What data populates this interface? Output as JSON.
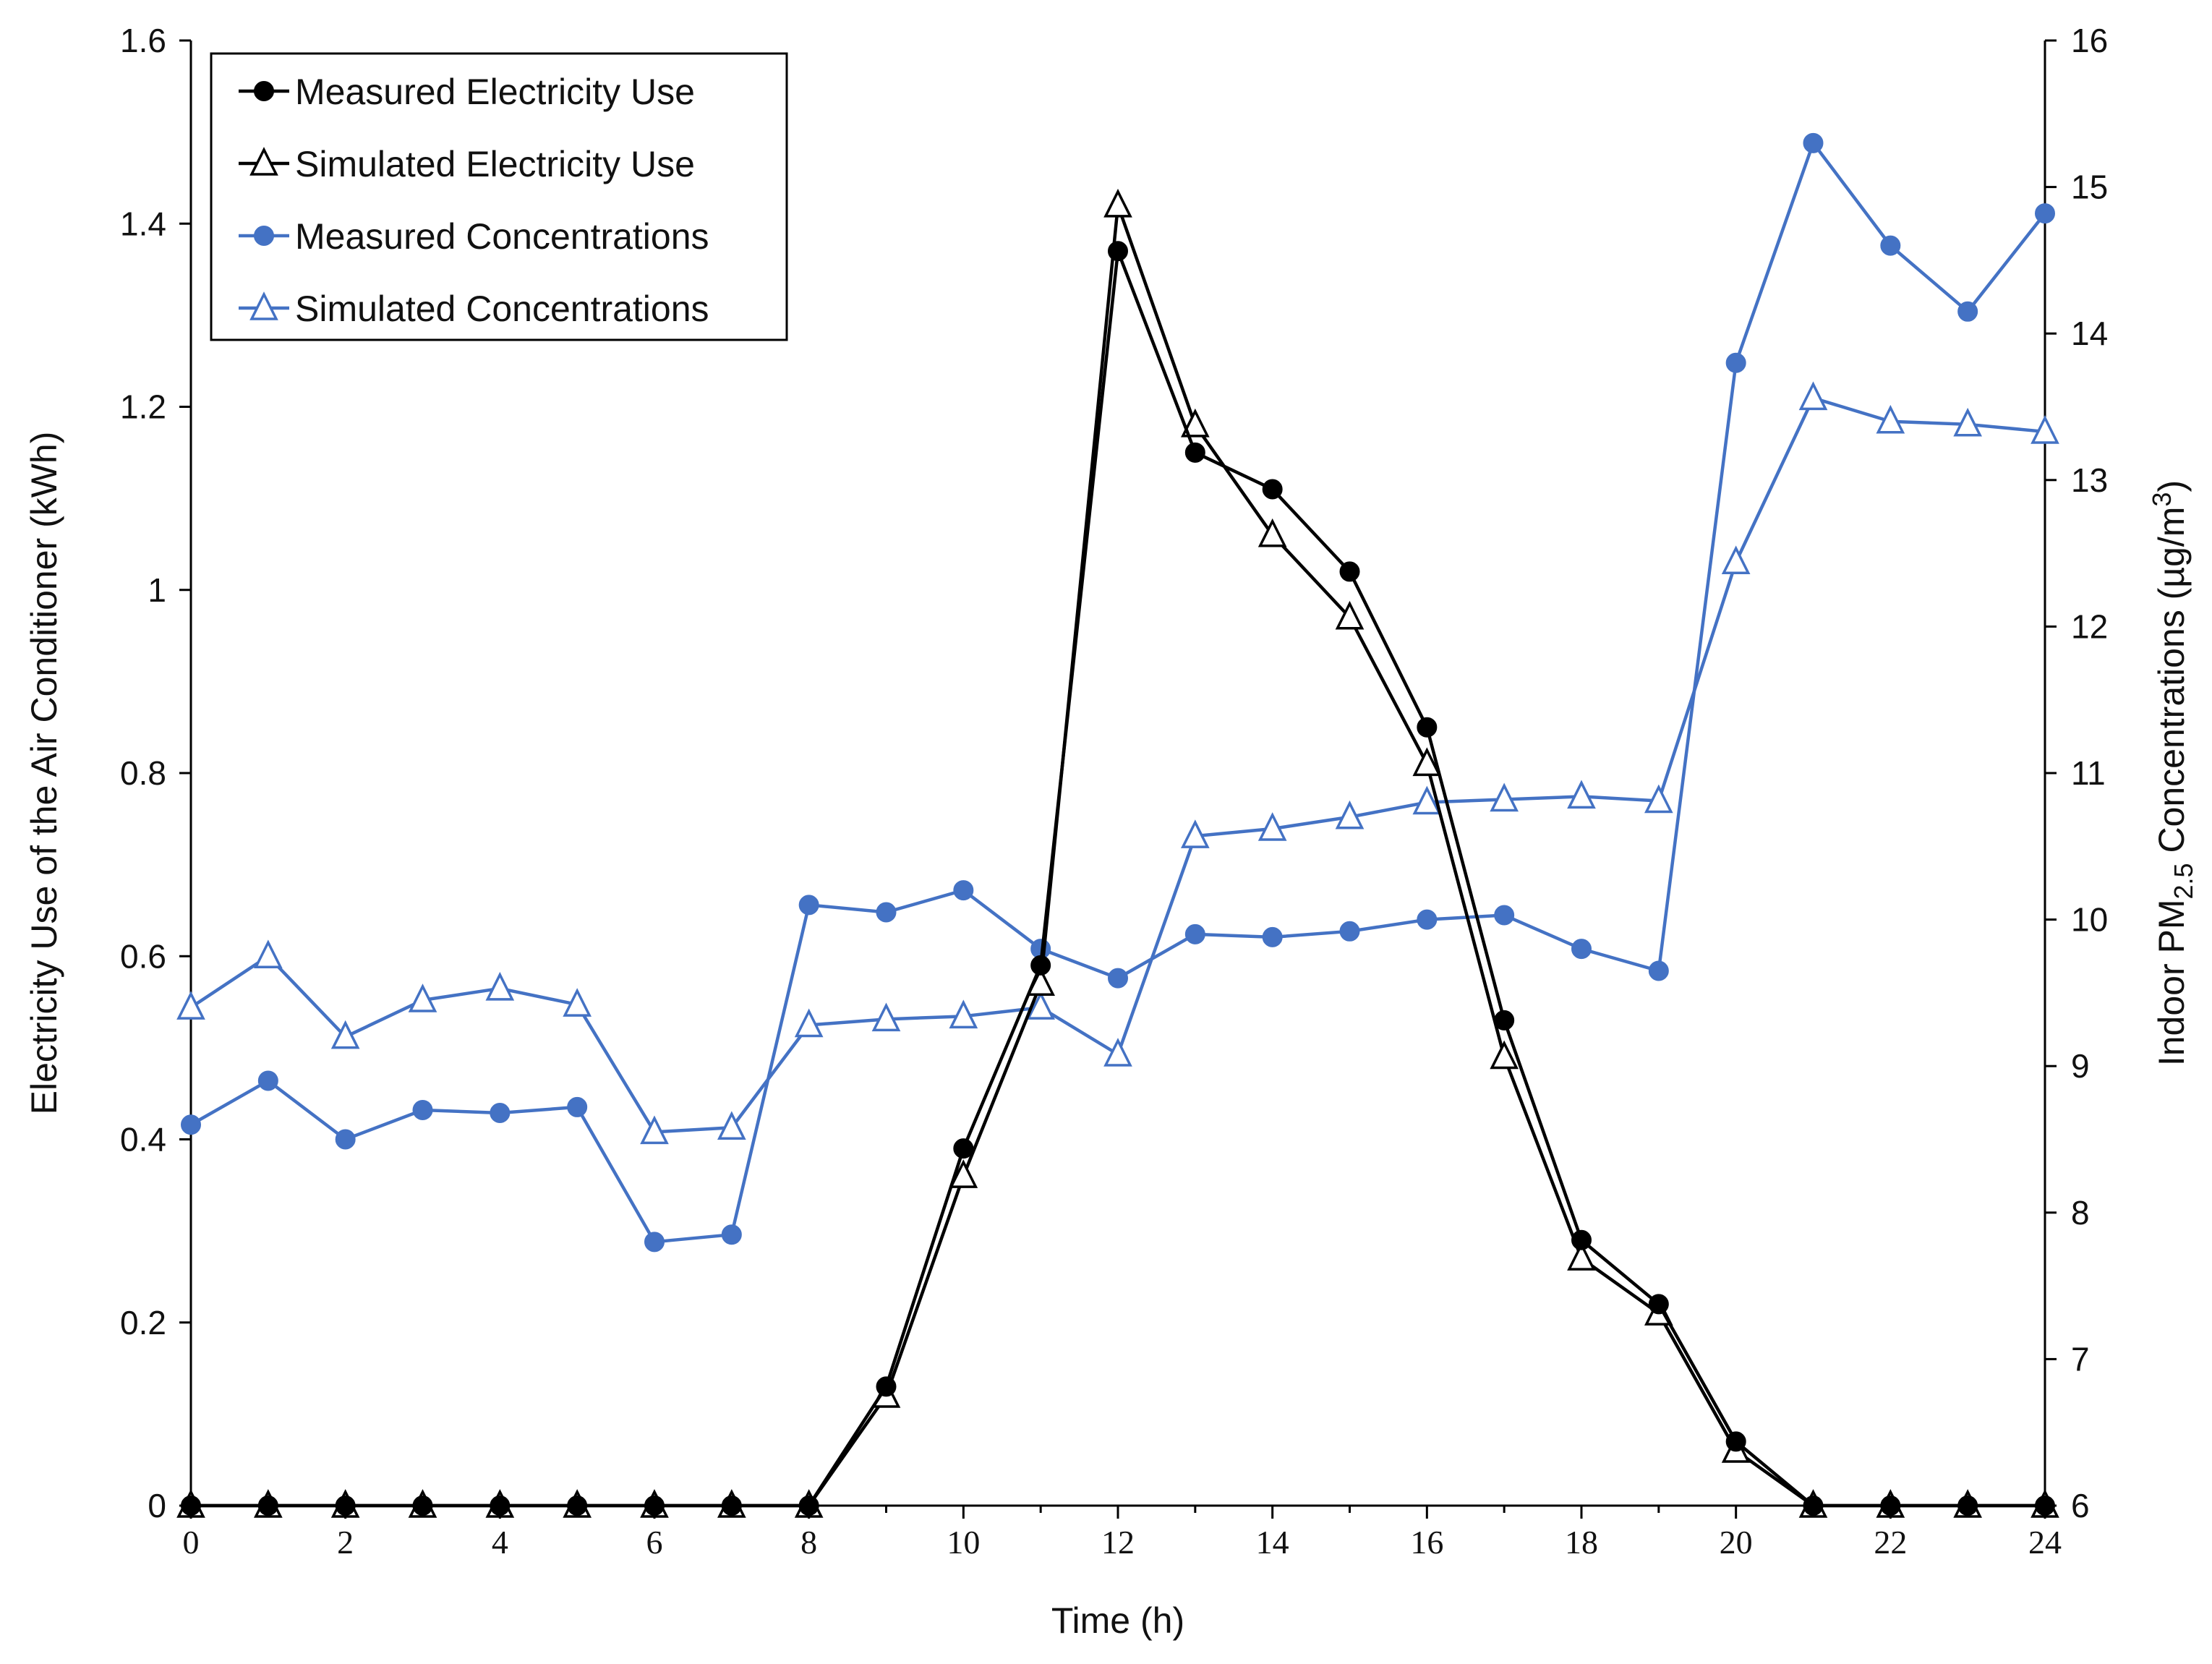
{
  "chart_data": {
    "type": "line",
    "title": "",
    "xlabel": "Time (h)",
    "ylabel": "Electricity Use of the Air Conditioner (kWh)",
    "y2label": {
      "prefix": "Indoor PM",
      "subscript": "2.5",
      "middle": " Concentrations (µg/m",
      "superscript": "3",
      "suffix": ")"
    },
    "xlim": [
      0,
      24
    ],
    "ylim": [
      0,
      1.6
    ],
    "y2lim": [
      6,
      16
    ],
    "x_ticks": [
      "0",
      "2",
      "4",
      "6",
      "8",
      "10",
      "12",
      "14",
      "16",
      "18",
      "20",
      "22",
      "24"
    ],
    "y_ticks": [
      "0",
      "0.2",
      "0.4",
      "0.6",
      "0.8",
      "1",
      "1.2",
      "1.4",
      "1.6"
    ],
    "y2_ticks": [
      "6",
      "7",
      "8",
      "9",
      "10",
      "11",
      "12",
      "13",
      "14",
      "15",
      "16"
    ],
    "grid": false,
    "legend_position": "top-left",
    "x": [
      0,
      1,
      2,
      3,
      4,
      5,
      6,
      7,
      8,
      9,
      10,
      11,
      12,
      13,
      14,
      15,
      16,
      17,
      18,
      19,
      20,
      21,
      22,
      23,
      24
    ],
    "series": [
      {
        "name": "Measured Electricity Use",
        "axis": "left",
        "color": "#000000",
        "marker": "filled-circle",
        "values": [
          0,
          0,
          0,
          0,
          0,
          0,
          0,
          0,
          0,
          0.13,
          0.39,
          0.59,
          1.37,
          1.15,
          1.11,
          1.02,
          0.85,
          0.53,
          0.29,
          0.22,
          0.07,
          0,
          0,
          0,
          0
        ]
      },
      {
        "name": "Simulated Electricity Use",
        "axis": "left",
        "color": "#000000",
        "marker": "open-triangle",
        "values": [
          0,
          0,
          0,
          0,
          0,
          0,
          0,
          0,
          0,
          0.12,
          0.36,
          0.57,
          1.42,
          1.18,
          1.06,
          0.97,
          0.81,
          0.49,
          0.27,
          0.21,
          0.06,
          0,
          0,
          0,
          0
        ]
      },
      {
        "name": "Measured Concentrations",
        "axis": "right",
        "color": "#4472c4",
        "marker": "filled-circle",
        "values": [
          8.6,
          8.9,
          8.5,
          8.7,
          8.68,
          8.72,
          7.8,
          7.85,
          10.1,
          10.05,
          10.2,
          9.8,
          9.6,
          9.9,
          9.88,
          9.92,
          10.0,
          10.03,
          9.8,
          9.65,
          13.8,
          15.3,
          14.6,
          14.15,
          14.82
        ]
      },
      {
        "name": "Simulated Concentrations",
        "axis": "right",
        "color": "#4472c4",
        "marker": "open-triangle",
        "values": [
          9.4,
          9.75,
          9.2,
          9.45,
          9.53,
          9.42,
          8.55,
          8.58,
          9.28,
          9.32,
          9.34,
          9.4,
          9.08,
          10.57,
          10.62,
          10.7,
          10.8,
          10.82,
          10.84,
          10.81,
          12.44,
          13.56,
          13.4,
          13.38,
          13.33
        ]
      }
    ]
  }
}
